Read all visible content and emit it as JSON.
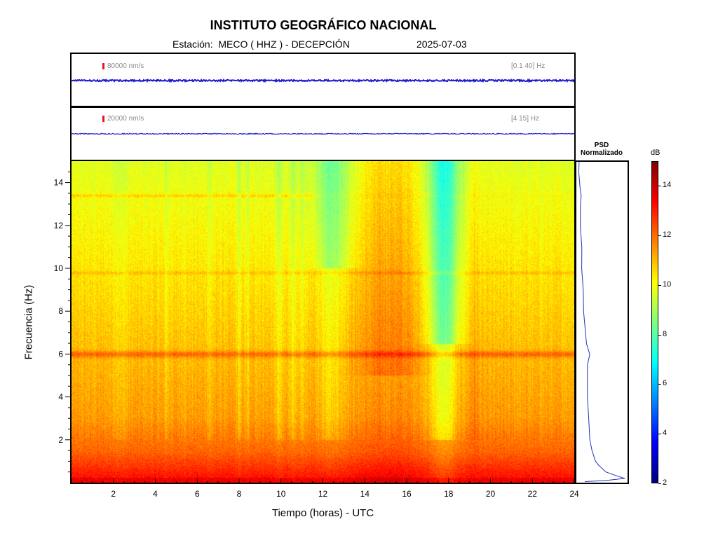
{
  "title": "INSTITUTO GEOGRÁFICO NACIONAL",
  "station_line": "Estación:  MECO ( HHZ ) - DECEPCIÓN",
  "date": "2025-07-03",
  "traces": [
    {
      "scale_label": "80000 nm/s",
      "band_label": "[0.1 40] Hz"
    },
    {
      "scale_label": "20000 nm/s",
      "band_label": "[4 15] Hz"
    }
  ],
  "psd": {
    "title_line1": "PSD",
    "title_line2": "Normalizado"
  },
  "colorbar": {
    "unit": "dB",
    "range": [
      2,
      15
    ],
    "ticks": [
      "14",
      "12",
      "10",
      "8",
      "6",
      "4",
      "2"
    ],
    "colors": [
      "#000080",
      "#0000ff",
      "#0080ff",
      "#00ffff",
      "#80ff80",
      "#ffff00",
      "#ff8000",
      "#ff0000",
      "#800000"
    ]
  },
  "chart_data": {
    "type": "heatmap",
    "xlabel": "Tiempo (horas) - UTC",
    "ylabel": "Frecuencia  (Hz)",
    "xlim": [
      0,
      24
    ],
    "ylim": [
      0,
      15
    ],
    "x_ticks": [
      "2",
      "4",
      "6",
      "8",
      "10",
      "12",
      "14",
      "16",
      "18",
      "20",
      "22",
      "24"
    ],
    "y_ticks": [
      "14",
      "12",
      "10",
      "8",
      "6",
      "4",
      "2"
    ],
    "psd_curve": {
      "freq": [
        0.05,
        0.1,
        0.2,
        0.3,
        0.5,
        0.8,
        1.0,
        1.5,
        2.0,
        3.0,
        4.0,
        5.0,
        5.5,
        6.0,
        6.5,
        7.0,
        8.0,
        9.0,
        10.0,
        11.0,
        12.0,
        13.0,
        13.4,
        13.8,
        14.5,
        15.0
      ],
      "level": [
        0.15,
        0.6,
        1.0,
        0.85,
        0.6,
        0.45,
        0.38,
        0.3,
        0.26,
        0.23,
        0.21,
        0.2,
        0.21,
        0.25,
        0.19,
        0.16,
        0.13,
        0.11,
        0.09,
        0.08,
        0.06,
        0.05,
        0.08,
        0.04,
        0.03,
        0.02
      ]
    }
  }
}
